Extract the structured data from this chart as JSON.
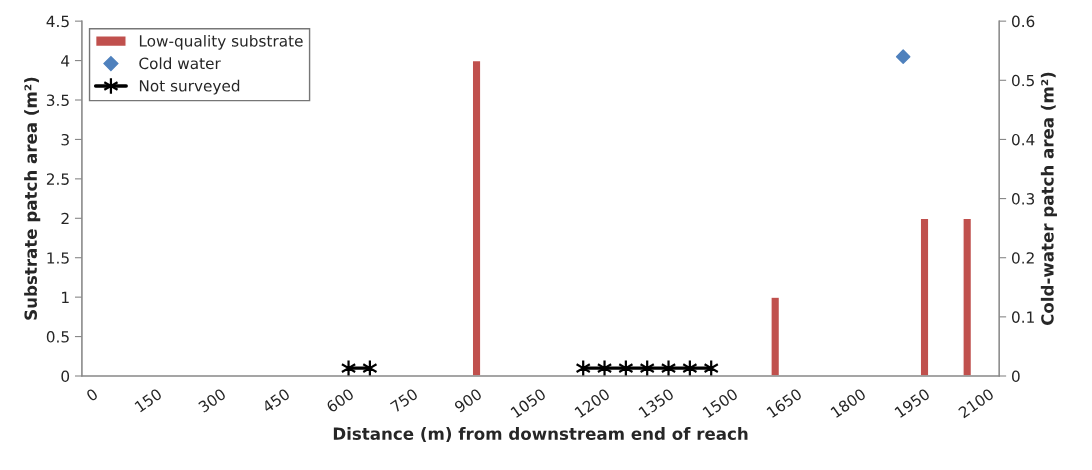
{
  "chart_data": {
    "type": "bar",
    "xlabel": "Distance (m) from downstream end of reach",
    "ylabel": "Substrate patch area (m²)",
    "y2label": "Cold-water patch area (m²)",
    "categories": [
      "0",
      null,
      null,
      "150",
      null,
      null,
      "300",
      null,
      null,
      "450",
      null,
      null,
      "600",
      null,
      null,
      "750",
      null,
      null,
      "900",
      null,
      null,
      "1050",
      null,
      null,
      "1200",
      null,
      null,
      "1350",
      null,
      null,
      "1500",
      null,
      null,
      "1650",
      null,
      null,
      "1800",
      null,
      null,
      "1950",
      null,
      null,
      "2100"
    ],
    "series": [
      {
        "name": "Low-quality substrate",
        "color": "#c0504d",
        "values": [
          null,
          null,
          null,
          null,
          null,
          null,
          null,
          null,
          null,
          null,
          null,
          null,
          null,
          null,
          null,
          null,
          null,
          null,
          4,
          null,
          null,
          null,
          null,
          null,
          null,
          null,
          null,
          null,
          null,
          null,
          null,
          null,
          1,
          null,
          null,
          null,
          null,
          null,
          null,
          2,
          null,
          2,
          null
        ]
      },
      {
        "name": "Cold water",
        "type": "scatter",
        "axis": "y2",
        "marker": "diamond",
        "color": "#4f81bd",
        "values": [
          null,
          null,
          null,
          null,
          null,
          null,
          null,
          null,
          null,
          null,
          null,
          null,
          null,
          null,
          null,
          null,
          null,
          null,
          null,
          null,
          null,
          null,
          null,
          null,
          null,
          null,
          null,
          null,
          null,
          null,
          null,
          null,
          null,
          null,
          null,
          null,
          null,
          null,
          0.54,
          null,
          null,
          null,
          null
        ]
      },
      {
        "name": "Not surveyed",
        "type": "line",
        "marker": "cross",
        "color": "#000000",
        "values": [
          null,
          null,
          null,
          null,
          null,
          null,
          null,
          null,
          null,
          null,
          null,
          null,
          0.1,
          0.1,
          null,
          null,
          null,
          null,
          null,
          null,
          null,
          null,
          null,
          0.1,
          0.1,
          0.1,
          0.1,
          0.1,
          0.1,
          0.1,
          null,
          null,
          null,
          null,
          null,
          null,
          null,
          null,
          null,
          null,
          null,
          null,
          null
        ]
      }
    ],
    "ylim": [
      0,
      4.5
    ],
    "yticks": [
      0,
      0.5,
      1,
      1.5,
      2,
      2.5,
      3,
      3.5,
      4,
      4.5
    ],
    "y2lim": [
      0,
      0.6
    ],
    "y2ticks": [
      0,
      0.1,
      0.2,
      0.3,
      0.4,
      0.5,
      0.6
    ],
    "grid": false,
    "legend": "top left"
  }
}
